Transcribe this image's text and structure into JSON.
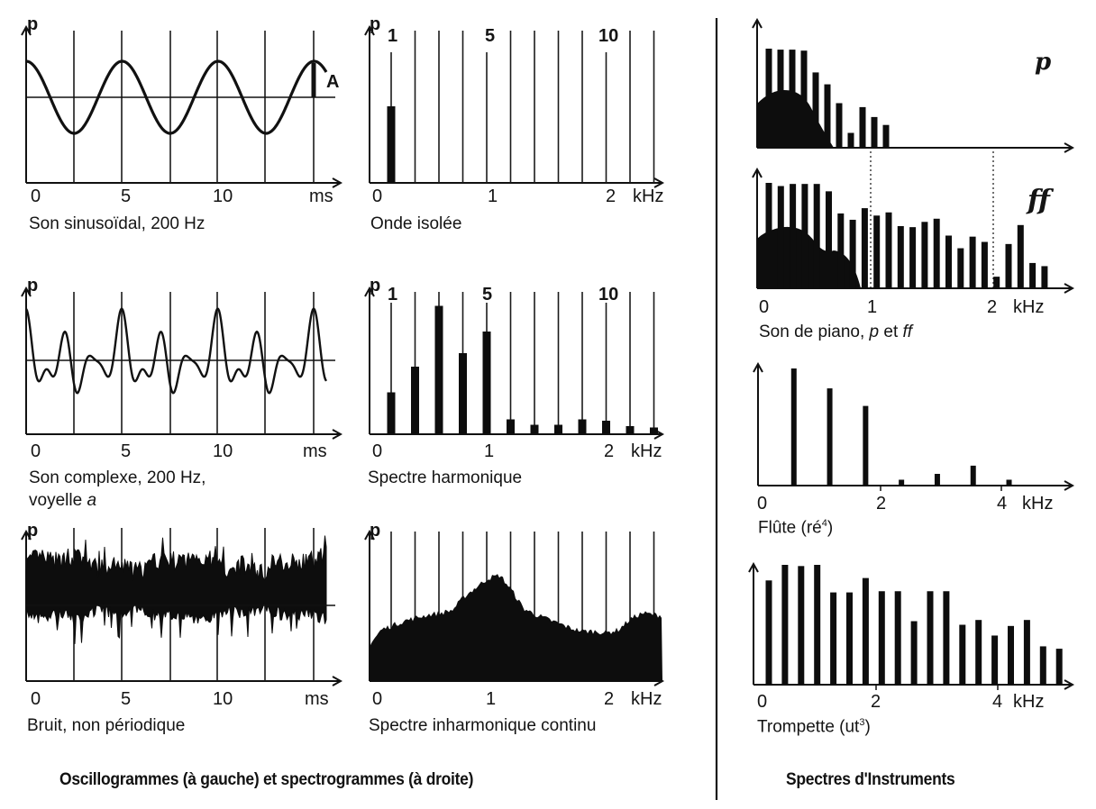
{
  "footer": {
    "left_title": "Oscillogrammes (à gauche) et spectrogrammes (à droite)",
    "right_title": "Spectres d'Instruments"
  },
  "chart_data": [
    {
      "id": "sine",
      "type": "line",
      "title": "Son sinusoïdal, 200 Hz",
      "ylabel": "p",
      "xlabel": "ms",
      "x_ticks": [
        "0",
        "5",
        "10",
        "ms"
      ],
      "annotation": "A",
      "frequency_hz": 200,
      "period_ms": 5,
      "xlim": [
        0,
        15
      ],
      "grid": "vertical lines every 2.5 ms",
      "description": "Pure sinusoid of amplitude A around a horizontal mean line, 3 periods shown"
    },
    {
      "id": "isolated-wave-spectrum",
      "type": "bar",
      "title": "Onde isolée",
      "ylabel": "p",
      "xlabel": "kHz",
      "x_ticks": [
        "0",
        "1",
        "2",
        "kHz"
      ],
      "harmonic_labels": [
        "1",
        "5",
        "10"
      ],
      "harmonics": [
        1,
        2,
        3,
        4,
        5,
        6,
        7,
        8,
        9,
        10,
        11,
        12
      ],
      "harmonic_spacing_hz": 200,
      "values": [
        0.5,
        0,
        0,
        0,
        0,
        0,
        0,
        0,
        0,
        0,
        0,
        0
      ],
      "xlim": [
        0,
        2.4
      ]
    },
    {
      "id": "complex",
      "type": "line",
      "title": "Son complexe, 200 Hz,",
      "title_line2": "voyelle",
      "title_line2_italic": "a",
      "ylabel": "p",
      "xlabel": "ms",
      "x_ticks": [
        "0",
        "5",
        "10",
        "ms"
      ],
      "frequency_hz": 200,
      "period_ms": 5,
      "xlim": [
        0,
        15
      ],
      "description": "Periodic complex waveform (vowel a), repeating every 5 ms"
    },
    {
      "id": "harmonic-spectrum",
      "type": "bar",
      "title": "Spectre harmonique",
      "ylabel": "p",
      "xlabel": "kHz",
      "x_ticks": [
        "0",
        "1",
        "2",
        "kHz"
      ],
      "harmonic_labels": [
        "1",
        "5",
        "10"
      ],
      "harmonics": [
        1,
        2,
        3,
        4,
        5,
        6,
        7,
        8,
        9,
        10,
        11,
        12
      ],
      "harmonic_spacing_hz": 200,
      "values": [
        0.31,
        0.5,
        0.95,
        0.6,
        0.76,
        0.11,
        0.07,
        0.07,
        0.11,
        0.1,
        0.06,
        0.05
      ],
      "xlim": [
        0,
        2.4
      ]
    },
    {
      "id": "noise",
      "type": "line",
      "title": "Bruit, non périodique",
      "ylabel": "p",
      "xlabel": "ms",
      "x_ticks": [
        "0",
        "5",
        "10",
        "ms"
      ],
      "xlim": [
        0,
        15
      ],
      "description": "Random non-periodic noise signal"
    },
    {
      "id": "continuous-spectrum",
      "type": "area",
      "title": "Spectre inharmonique continu",
      "ylabel": "p",
      "xlabel": "kHz",
      "x_ticks": [
        "0",
        "1",
        "2",
        "kHz"
      ],
      "x": [
        0,
        0.1,
        0.2,
        0.3,
        0.4,
        0.5,
        0.6,
        0.7,
        0.8,
        0.9,
        1.0,
        1.1,
        1.2,
        1.3,
        1.4,
        1.5,
        1.6,
        1.7,
        1.8,
        1.9,
        2.0,
        2.1,
        2.2,
        2.3,
        2.4
      ],
      "values": [
        0.24,
        0.34,
        0.37,
        0.4,
        0.42,
        0.44,
        0.45,
        0.47,
        0.56,
        0.62,
        0.68,
        0.7,
        0.6,
        0.48,
        0.44,
        0.41,
        0.38,
        0.35,
        0.33,
        0.33,
        0.32,
        0.34,
        0.41,
        0.45,
        0.44
      ],
      "xlim": [
        0,
        2.4
      ]
    },
    {
      "id": "piano-p",
      "type": "bar",
      "title": "Son de piano, p et ff",
      "dynamic_label": "p",
      "x": [
        0.1,
        0.2,
        0.3,
        0.4,
        0.5,
        0.6,
        0.7,
        0.8,
        0.9,
        1.0,
        1.1
      ],
      "values": [
        1.0,
        0.99,
        0.99,
        0.98,
        0.76,
        0.64,
        0.45,
        0.15,
        0.41,
        0.31,
        0.23
      ],
      "envelope": "filled hump from 0 to ~0.55 kHz, peak ~0.55",
      "markers_khz": [
        1,
        2
      ]
    },
    {
      "id": "piano-ff",
      "type": "bar",
      "title": "Son de piano, p et ff",
      "dynamic_label": "ff",
      "xlabel": "kHz",
      "x_ticks": [
        "0",
        "1",
        "2",
        "kHz"
      ],
      "x": [
        0.1,
        0.2,
        0.3,
        0.4,
        0.5,
        0.6,
        0.7,
        0.8,
        0.9,
        1.0,
        1.1,
        1.2,
        1.3,
        1.4,
        1.5,
        1.6,
        1.7,
        1.8,
        1.9,
        2.0,
        2.1,
        2.2,
        2.3,
        2.4
      ],
      "values": [
        1.0,
        0.97,
        0.99,
        0.99,
        0.99,
        0.92,
        0.71,
        0.65,
        0.76,
        0.69,
        0.72,
        0.59,
        0.58,
        0.63,
        0.66,
        0.5,
        0.38,
        0.49,
        0.44,
        0.11,
        0.42,
        0.6,
        0.24,
        0.21
      ],
      "markers_khz": [
        1,
        2
      ]
    },
    {
      "id": "flute",
      "type": "bar",
      "title": "Flûte (ré⁴)",
      "title_base": "Flûte (ré",
      "title_sup": "4",
      "title_end": ")",
      "xlabel": "kHz",
      "x_ticks": [
        "0",
        "2",
        "4",
        "kHz"
      ],
      "x": [
        0.58,
        1.16,
        1.74,
        2.32,
        2.9,
        3.48,
        4.06
      ],
      "values": [
        1.0,
        0.83,
        0.68,
        0.05,
        0.1,
        0.17,
        0.05
      ],
      "xlim": [
        0,
        5
      ]
    },
    {
      "id": "trumpet",
      "type": "bar",
      "title": "Trompette (ut³)",
      "title_base": "Trompette (ut",
      "title_sup": "3",
      "title_end": ")",
      "xlabel": "kHz",
      "x_ticks": [
        "0",
        "2",
        "4",
        "kHz"
      ],
      "x": [
        0.26,
        0.52,
        0.78,
        1.04,
        1.3,
        1.56,
        1.82,
        2.08,
        2.34,
        2.6,
        2.86,
        3.12,
        3.38,
        3.64,
        3.9,
        4.16,
        4.42,
        4.68,
        4.94
      ],
      "values": [
        0.87,
        1.0,
        0.99,
        1.0,
        0.77,
        0.77,
        0.89,
        0.78,
        0.78,
        0.53,
        0.78,
        0.78,
        0.5,
        0.54,
        0.41,
        0.49,
        0.54,
        0.32,
        0.3
      ],
      "xlim": [
        0,
        5
      ]
    }
  ]
}
